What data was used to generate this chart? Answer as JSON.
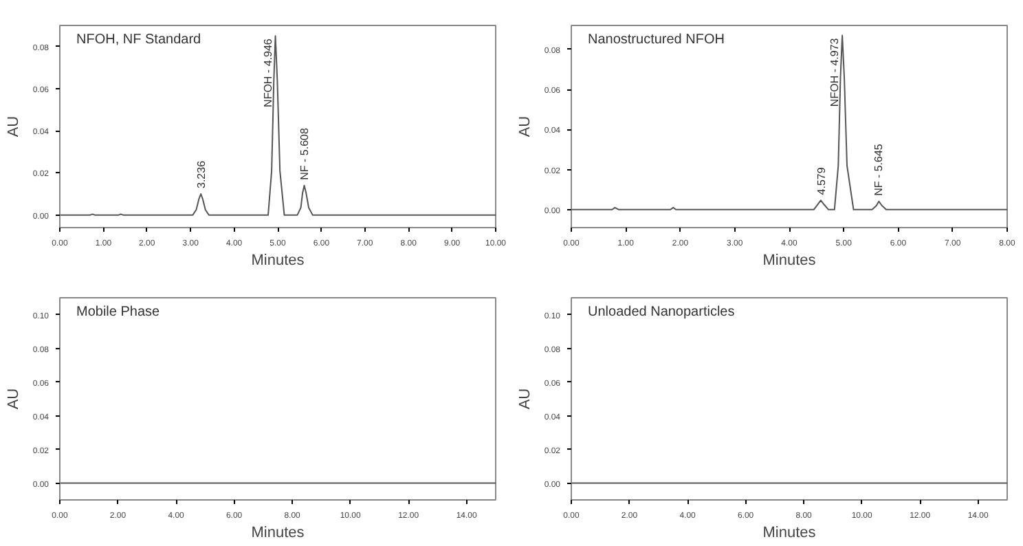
{
  "chart_data": [
    {
      "type": "line",
      "title": "NFOH, NF Standard",
      "xlabel": "Minutes",
      "ylabel": "AU",
      "xlim": [
        0,
        10
      ],
      "ylim": [
        -0.006,
        0.09
      ],
      "xticks": [
        {
          "value": 0,
          "label": "0.00"
        },
        {
          "value": 1,
          "label": "1.00"
        },
        {
          "value": 2,
          "label": "2.00"
        },
        {
          "value": 3,
          "label": "3.00"
        },
        {
          "value": 4,
          "label": "4.00"
        },
        {
          "value": 5,
          "label": "5.00"
        },
        {
          "value": 6,
          "label": "6.00"
        },
        {
          "value": 7,
          "label": "7.00"
        },
        {
          "value": 8,
          "label": "8.00"
        },
        {
          "value": 9,
          "label": "9.00"
        },
        {
          "value": 10,
          "label": "10.00"
        }
      ],
      "yticks": [
        {
          "value": 0,
          "label": "0.00"
        },
        {
          "value": 0.02,
          "label": "0.02"
        },
        {
          "value": 0.04,
          "label": "0.04"
        },
        {
          "value": 0.06,
          "label": "0.06"
        },
        {
          "value": 0.08,
          "label": "0.08"
        }
      ],
      "series": [
        {
          "color": "#555555",
          "x": [
            0,
            0.7,
            0.75,
            0.8,
            1.35,
            1.4,
            1.45,
            3.05,
            3.13,
            3.19,
            3.236,
            3.28,
            3.34,
            3.42,
            4.78,
            4.86,
            4.91,
            4.946,
            4.99,
            5.05,
            5.15,
            5.45,
            5.53,
            5.57,
            5.608,
            5.65,
            5.71,
            5.8,
            10
          ],
          "values": [
            0,
            0,
            0.0004,
            0,
            0,
            0.0004,
            0,
            0,
            0.0025,
            0.0075,
            0.01,
            0.0075,
            0.0025,
            0,
            0,
            0.021,
            0.064,
            0.085,
            0.064,
            0.021,
            0,
            0,
            0.0035,
            0.0105,
            0.014,
            0.0105,
            0.0035,
            0,
            0
          ]
        }
      ],
      "annotations": [
        {
          "text": "3.236",
          "x": 3.236,
          "y": 0.01
        },
        {
          "text": "NFOH - 4.946",
          "x": 4.946,
          "y": 0.085
        },
        {
          "text": "NF - 5.608",
          "x": 5.608,
          "y": 0.014
        }
      ]
    },
    {
      "type": "line",
      "title": "Nanostructured NFOH",
      "xlabel": "Minutes",
      "ylabel": "AU",
      "xlim": [
        0,
        8
      ],
      "ylim": [
        -0.009,
        0.092
      ],
      "xticks": [
        {
          "value": 0,
          "label": "0.00"
        },
        {
          "value": 1,
          "label": "1.00"
        },
        {
          "value": 2,
          "label": "2.00"
        },
        {
          "value": 3,
          "label": "3.00"
        },
        {
          "value": 4,
          "label": "4.00"
        },
        {
          "value": 5,
          "label": "5.00"
        },
        {
          "value": 6,
          "label": "6.00"
        },
        {
          "value": 7,
          "label": "7.00"
        },
        {
          "value": 8,
          "label": "8.00"
        }
      ],
      "yticks": [
        {
          "value": 0,
          "label": "0.00"
        },
        {
          "value": 0.02,
          "label": "0.02"
        },
        {
          "value": 0.04,
          "label": "0.04"
        },
        {
          "value": 0.06,
          "label": "0.06"
        },
        {
          "value": 0.08,
          "label": "0.08"
        }
      ],
      "series": [
        {
          "color": "#555555",
          "x": [
            0,
            0.75,
            0.8,
            0.87,
            1.82,
            1.87,
            1.92,
            4.45,
            4.52,
            4.579,
            4.64,
            4.72,
            4.83,
            4.9,
            4.94,
            4.973,
            5.01,
            5.06,
            5.18,
            5.52,
            5.6,
            5.645,
            5.7,
            5.78,
            8
          ],
          "values": [
            0,
            0,
            0.001,
            0,
            0,
            0.001,
            0,
            0,
            0.0025,
            0.0046,
            0.0025,
            0,
            0,
            0.022,
            0.066,
            0.087,
            0.066,
            0.022,
            0,
            0,
            0.002,
            0.0041,
            0.002,
            0,
            0
          ]
        }
      ],
      "annotations": [
        {
          "text": "4.579",
          "x": 4.579,
          "y": 0.0046
        },
        {
          "text": "NFOH - 4.973",
          "x": 4.973,
          "y": 0.087
        },
        {
          "text": "NF - 5.645",
          "x": 5.645,
          "y": 0.0041
        }
      ]
    },
    {
      "type": "line",
      "title": "Mobile Phase",
      "xlabel": "Minutes",
      "ylabel": "AU",
      "xlim": [
        0,
        15
      ],
      "ylim": [
        -0.01,
        0.11
      ],
      "xticks": [
        {
          "value": 0,
          "label": "0.00"
        },
        {
          "value": 2,
          "label": "2.00"
        },
        {
          "value": 4,
          "label": "4.00"
        },
        {
          "value": 6,
          "label": "6.00"
        },
        {
          "value": 8,
          "label": "8.00"
        },
        {
          "value": 10,
          "label": "10.00"
        },
        {
          "value": 12,
          "label": "12.00"
        },
        {
          "value": 14,
          "label": "14.00"
        }
      ],
      "yticks": [
        {
          "value": 0,
          "label": "0.00"
        },
        {
          "value": 0.02,
          "label": "0.02"
        },
        {
          "value": 0.04,
          "label": "0.04"
        },
        {
          "value": 0.06,
          "label": "0.06"
        },
        {
          "value": 0.08,
          "label": "0.08"
        },
        {
          "value": 0.1,
          "label": "0.10"
        }
      ],
      "series": [
        {
          "color": "#555555",
          "x": [
            0,
            5,
            10,
            15
          ],
          "values": [
            0,
            0,
            0,
            0
          ]
        }
      ]
    },
    {
      "type": "line",
      "title": "Unloaded  Nanoparticles",
      "xlabel": "Minutes",
      "ylabel": "AU",
      "xlim": [
        0,
        15
      ],
      "ylim": [
        -0.01,
        0.11
      ],
      "xticks": [
        {
          "value": 0,
          "label": "0.00"
        },
        {
          "value": 2,
          "label": "2.00"
        },
        {
          "value": 4,
          "label": "4.00"
        },
        {
          "value": 6,
          "label": "6.00"
        },
        {
          "value": 8,
          "label": "8.00"
        },
        {
          "value": 10,
          "label": "10.00"
        },
        {
          "value": 12,
          "label": "12.00"
        },
        {
          "value": 14,
          "label": "14.00"
        }
      ],
      "yticks": [
        {
          "value": 0,
          "label": "0.00"
        },
        {
          "value": 0.02,
          "label": "0.02"
        },
        {
          "value": 0.04,
          "label": "0.04"
        },
        {
          "value": 0.06,
          "label": "0.06"
        },
        {
          "value": 0.08,
          "label": "0.08"
        },
        {
          "value": 0.1,
          "label": "0.10"
        }
      ],
      "series": [
        {
          "color": "#555555",
          "x": [
            0,
            5,
            10,
            15
          ],
          "values": [
            0,
            0,
            0,
            0
          ]
        }
      ]
    }
  ]
}
